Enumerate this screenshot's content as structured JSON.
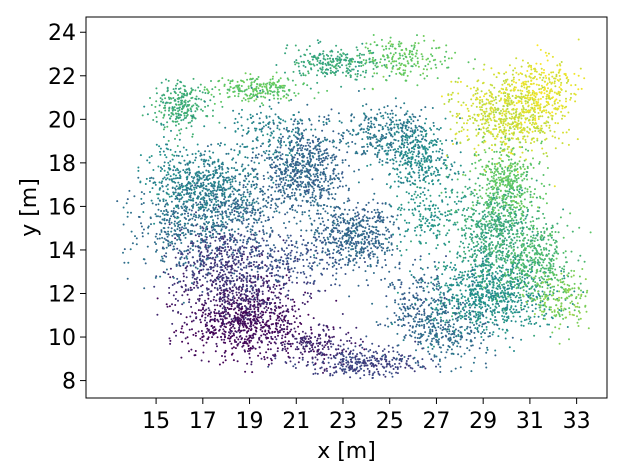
{
  "chart_data": {
    "type": "scatter",
    "xlabel": "x [m]",
    "ylabel": "y [m]",
    "xlim": [
      12.0,
      34.3
    ],
    "ylim": [
      7.2,
      24.7
    ],
    "xticks": [
      15,
      17,
      19,
      21,
      23,
      25,
      27,
      29,
      31,
      33
    ],
    "yticks": [
      8,
      10,
      12,
      14,
      16,
      18,
      20,
      22,
      24
    ],
    "grid": false,
    "legend": "none",
    "colormap": "viridis",
    "colormap_stops": [
      "#440154",
      "#3b528b",
      "#21918c",
      "#5ec962",
      "#fde725"
    ],
    "point_color": "#21918c",
    "clusters": [
      {
        "cx": 18.8,
        "cy": 10.6,
        "sx": 1.3,
        "sy": 0.8,
        "n": 700,
        "c": 0.02
      },
      {
        "cx": 18.5,
        "cy": 12.2,
        "sx": 1.3,
        "sy": 0.9,
        "n": 450,
        "c": 0.12
      },
      {
        "cx": 17.6,
        "cy": 13.7,
        "sx": 1.0,
        "sy": 0.8,
        "n": 320,
        "c": 0.18
      },
      {
        "cx": 21.8,
        "cy": 9.6,
        "sx": 0.9,
        "sy": 0.5,
        "n": 200,
        "c": 0.1
      },
      {
        "cx": 23.9,
        "cy": 8.8,
        "sx": 1.2,
        "sy": 0.35,
        "n": 300,
        "c": 0.2
      },
      {
        "cx": 16.0,
        "cy": 15.0,
        "sx": 0.9,
        "sy": 1.0,
        "n": 350,
        "c": 0.36
      },
      {
        "cx": 17.4,
        "cy": 16.9,
        "sx": 1.0,
        "sy": 0.8,
        "n": 520,
        "c": 0.42
      },
      {
        "cx": 18.7,
        "cy": 15.7,
        "sx": 0.8,
        "sy": 0.8,
        "n": 240,
        "c": 0.34
      },
      {
        "cx": 21.3,
        "cy": 17.7,
        "sx": 0.9,
        "sy": 1.0,
        "n": 700,
        "c": 0.33
      },
      {
        "cx": 23.5,
        "cy": 14.7,
        "sx": 0.9,
        "sy": 0.8,
        "n": 520,
        "c": 0.33
      },
      {
        "cx": 24.9,
        "cy": 19.4,
        "sx": 1.0,
        "sy": 0.6,
        "n": 320,
        "c": 0.4
      },
      {
        "cx": 26.3,
        "cy": 18.2,
        "sx": 0.8,
        "sy": 0.7,
        "n": 320,
        "c": 0.48
      },
      {
        "cx": 29.3,
        "cy": 12.0,
        "sx": 1.3,
        "sy": 0.9,
        "n": 850,
        "c": 0.5
      },
      {
        "cx": 29.6,
        "cy": 15.0,
        "sx": 0.9,
        "sy": 1.0,
        "n": 600,
        "c": 0.6
      },
      {
        "cx": 30.0,
        "cy": 17.2,
        "sx": 0.7,
        "sy": 0.8,
        "n": 380,
        "c": 0.74
      },
      {
        "cx": 31.2,
        "cy": 13.5,
        "sx": 0.8,
        "sy": 0.9,
        "n": 350,
        "c": 0.68
      },
      {
        "cx": 32.3,
        "cy": 11.8,
        "sx": 0.7,
        "sy": 0.6,
        "n": 180,
        "c": 0.8
      },
      {
        "cx": 30.0,
        "cy": 20.2,
        "sx": 1.0,
        "sy": 0.9,
        "n": 620,
        "c": 0.92
      },
      {
        "cx": 31.4,
        "cy": 21.2,
        "sx": 0.8,
        "sy": 0.8,
        "n": 300,
        "c": 0.96
      },
      {
        "cx": 16.1,
        "cy": 20.6,
        "sx": 0.6,
        "sy": 0.6,
        "n": 260,
        "c": 0.62
      },
      {
        "cx": 19.3,
        "cy": 21.4,
        "sx": 0.9,
        "sy": 0.3,
        "n": 220,
        "c": 0.74
      },
      {
        "cx": 22.6,
        "cy": 22.6,
        "sx": 1.0,
        "sy": 0.4,
        "n": 260,
        "c": 0.6
      },
      {
        "cx": 25.8,
        "cy": 22.8,
        "sx": 1.0,
        "sy": 0.5,
        "n": 200,
        "c": 0.75
      },
      {
        "cx": 26.1,
        "cy": 11.5,
        "sx": 0.8,
        "sy": 0.9,
        "n": 220,
        "c": 0.32
      },
      {
        "cx": 27.4,
        "cy": 10.2,
        "sx": 1.0,
        "sy": 0.7,
        "n": 260,
        "c": 0.35
      },
      {
        "cx": 20.5,
        "cy": 13.6,
        "sx": 1.4,
        "sy": 0.7,
        "n": 260,
        "c": 0.25
      },
      {
        "cx": 26.6,
        "cy": 15.6,
        "sx": 0.8,
        "sy": 0.9,
        "n": 180,
        "c": 0.52
      },
      {
        "cx": 15.5,
        "cy": 17.8,
        "sx": 0.6,
        "sy": 1.0,
        "n": 130,
        "c": 0.48
      },
      {
        "cx": 19.9,
        "cy": 19.5,
        "sx": 1.1,
        "sy": 0.7,
        "n": 160,
        "c": 0.45
      }
    ]
  }
}
